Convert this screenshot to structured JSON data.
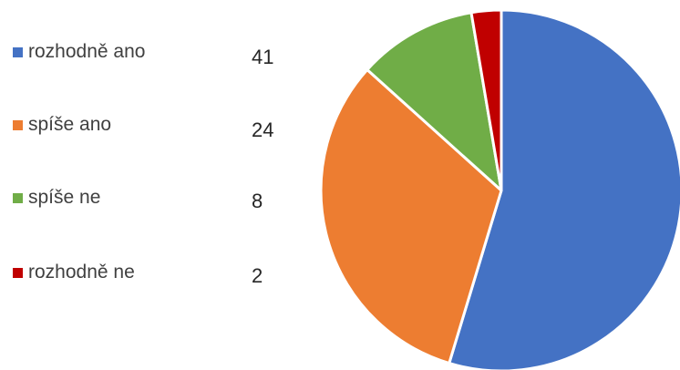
{
  "chart_data": {
    "type": "pie",
    "title": "",
    "legend_position": "left",
    "slices": [
      {
        "label": "rozhodně ano",
        "value": 41,
        "color": "#4472C4"
      },
      {
        "label": "spíše ano",
        "value": 24,
        "color": "#ED7D31"
      },
      {
        "label": "spíše ne",
        "value": 8,
        "color": "#70AD47"
      },
      {
        "label": "rozhodně ne",
        "value": 2,
        "color": "#C00000"
      }
    ]
  }
}
